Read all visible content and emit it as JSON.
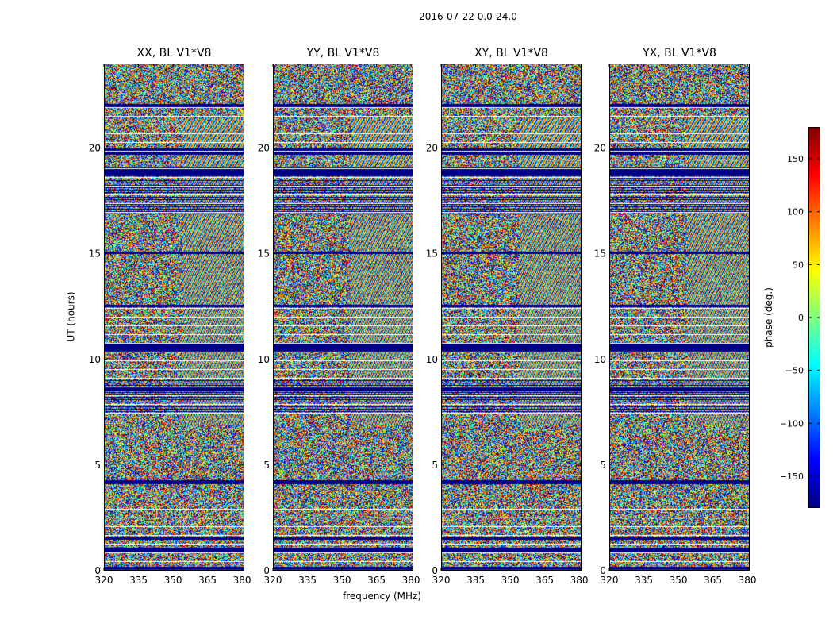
{
  "figure_title": "2016-07-22 0.0-24.0",
  "colors": {
    "colormap": "jet",
    "flag_color": "#00007f",
    "frame": "#000000"
  },
  "chart_data": {
    "type": "heatmap",
    "xlabel": "frequency (MHz)",
    "ylabel": "UT (hours)",
    "xlim": [
      320,
      381
    ],
    "ylim": [
      0,
      24
    ],
    "x_ticks": [
      320,
      335,
      350,
      365,
      380
    ],
    "y_ticks": [
      0,
      5,
      10,
      15,
      20
    ],
    "colorbar": {
      "label": "phase (deg.)",
      "range": [
        -180,
        180
      ],
      "ticks": [
        -150,
        -100,
        -50,
        0,
        50,
        100,
        150
      ],
      "tick_labels": [
        "−150",
        "−100",
        "−50",
        "0",
        "50",
        "100",
        "150"
      ],
      "colormap": "jet"
    },
    "panels": [
      {
        "title": "XX, BL V1*V8",
        "product": "XX"
      },
      {
        "title": "YY, BL V1*V8",
        "product": "YY"
      },
      {
        "title": "XY, BL V1*V8",
        "product": "XY"
      },
      {
        "title": "YX, BL V1*V8",
        "product": "YX"
      }
    ],
    "flagged_ut_bands_hours": [
      [
        0.0,
        0.2
      ],
      [
        0.9,
        1.1
      ],
      [
        1.5,
        1.6
      ],
      [
        4.1,
        4.3
      ],
      [
        8.5,
        8.7
      ],
      [
        10.4,
        10.8
      ],
      [
        12.5,
        12.6
      ],
      [
        15.0,
        15.1
      ],
      [
        18.7,
        19.1
      ],
      [
        19.7,
        20.0
      ],
      [
        21.9,
        22.1
      ]
    ]
  }
}
